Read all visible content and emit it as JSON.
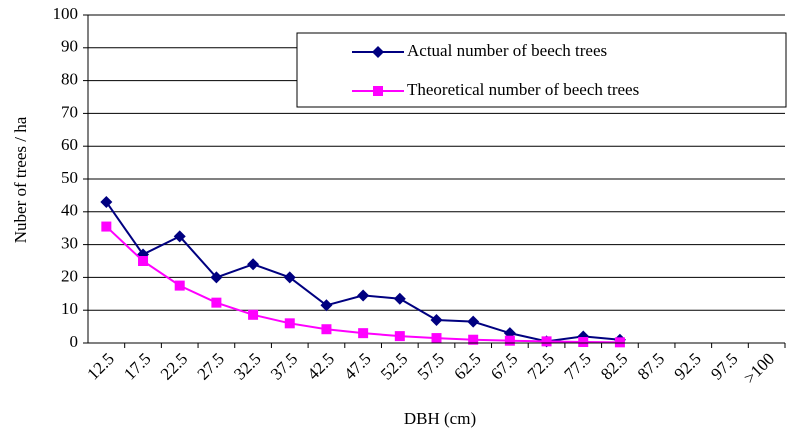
{
  "chart_data": {
    "type": "line",
    "x_label": "DBH (cm)",
    "y_label": "Nuber of trees / ha",
    "categories": [
      "12.5",
      "17.5",
      "22.5",
      "27.5",
      "32.5",
      "37.5",
      "42.5",
      "47.5",
      "52.5",
      "57.5",
      "62.5",
      "67.5",
      "72.5",
      "77.5",
      "82.5",
      "87.5",
      "92.5",
      "97.5",
      ">100"
    ],
    "series": [
      {
        "name": "Actual number of beech trees",
        "color": "#000080",
        "marker": "diamond",
        "values": [
          43,
          27,
          32.5,
          20,
          24,
          20,
          11.5,
          14.5,
          13.5,
          7,
          6.5,
          3,
          0.5,
          2,
          1,
          null,
          null,
          null,
          null
        ]
      },
      {
        "name": "Theoretical number of beech trees",
        "color": "#ff00ff",
        "marker": "square",
        "values": [
          35.5,
          25,
          17.5,
          12.3,
          8.6,
          6,
          4.2,
          3,
          2.1,
          1.5,
          1,
          0.7,
          0.5,
          0.3,
          0.2,
          null,
          null,
          null,
          null
        ]
      }
    ],
    "ylim": [
      0,
      100
    ],
    "yticks": [
      0,
      10,
      20,
      30,
      40,
      50,
      60,
      70,
      80,
      90,
      100
    ],
    "grid": true
  }
}
